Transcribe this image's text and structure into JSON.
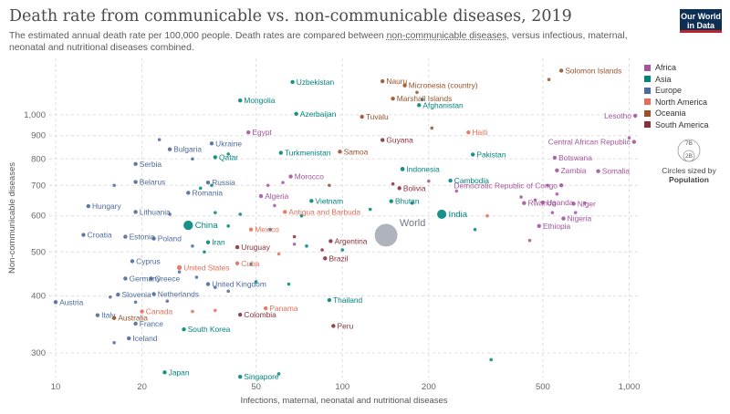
{
  "header": {
    "title": "Death rate from communicable vs. non-communicable diseases, 2019",
    "subtitle_pre": "The estimated annual death rate per 100,000 people. Death rates are compared between ",
    "subtitle_link": "non-communicable diseases",
    "subtitle_post": ", versus infectious, maternal, neonatal and nutritional diseases combined.",
    "logo_line1": "Our World",
    "logo_line2": "in Data"
  },
  "legend": {
    "items": [
      {
        "label": "Africa",
        "color": "#a2559c"
      },
      {
        "label": "Asia",
        "color": "#00847e"
      },
      {
        "label": "Europe",
        "color": "#4c6a9c"
      },
      {
        "label": "North America",
        "color": "#e56e5a"
      },
      {
        "label": "Oceania",
        "color": "#9a5129"
      },
      {
        "label": "South America",
        "color": "#883039"
      }
    ],
    "size_big": "7B",
    "size_small": "2B",
    "size_caption": "Circles sized by",
    "size_variable": "Population"
  },
  "chart_data": {
    "type": "scatter",
    "title": "Death rate from communicable vs. non-communicable diseases, 2019",
    "xlabel": "Infections, maternal, neonatal and nutritional diseases",
    "ylabel": "Non-communicable diseases",
    "x_scale": "log",
    "y_scale": "log",
    "xlim": [
      9.5,
      1080
    ],
    "ylim": [
      265,
      1330
    ],
    "x_ticks": [
      10,
      20,
      50,
      100,
      200,
      500,
      1000
    ],
    "x_tick_labels": [
      "10",
      "20",
      "50",
      "100",
      "200",
      "500",
      "1,000"
    ],
    "y_ticks": [
      300,
      400,
      500,
      600,
      700,
      800,
      900,
      1000
    ],
    "y_tick_labels": [
      "300",
      "400",
      "500",
      "600",
      "700",
      "800",
      "900",
      "1,000"
    ],
    "grid": true,
    "legend_position": "right",
    "colors": {
      "Africa": "#a2559c",
      "Asia": "#00847e",
      "Europe": "#4c6a9c",
      "North America": "#e56e5a",
      "Oceania": "#9a5129",
      "South America": "#883039",
      "World": "#6d7785"
    },
    "labeled_points": [
      {
        "name": "Solomon Islands",
        "region": "Oceania",
        "x": 580,
        "y": 1250
      },
      {
        "name": "Uzbekistan",
        "region": "Asia",
        "x": 67,
        "y": 1180
      },
      {
        "name": "Nauru",
        "region": "Oceania",
        "x": 138,
        "y": 1185
      },
      {
        "name": "Micronesia (country)",
        "region": "Oceania",
        "x": 165,
        "y": 1160
      },
      {
        "name": "Marshall Islands",
        "region": "Oceania",
        "x": 150,
        "y": 1085
      },
      {
        "name": "Mongolia",
        "region": "Asia",
        "x": 44,
        "y": 1075
      },
      {
        "name": "Afghanistan",
        "region": "Asia",
        "x": 185,
        "y": 1050
      },
      {
        "name": "Azerbaijan",
        "region": "Asia",
        "x": 69,
        "y": 1005
      },
      {
        "name": "Tuvalu",
        "region": "Oceania",
        "x": 117,
        "y": 990
      },
      {
        "name": "Lesotho",
        "region": "Africa",
        "x": 1050,
        "y": 995
      },
      {
        "name": "Egypt",
        "region": "Africa",
        "x": 47,
        "y": 915
      },
      {
        "name": "Haiti",
        "region": "North America",
        "x": 275,
        "y": 915
      },
      {
        "name": "Guyana",
        "region": "South America",
        "x": 138,
        "y": 880
      },
      {
        "name": "Central African Republic",
        "region": "Africa",
        "x": 1040,
        "y": 872
      },
      {
        "name": "Ukraine",
        "region": "Europe",
        "x": 35,
        "y": 865
      },
      {
        "name": "Bulgaria",
        "region": "Europe",
        "x": 25,
        "y": 840
      },
      {
        "name": "Samoa",
        "region": "Oceania",
        "x": 98,
        "y": 830
      },
      {
        "name": "Turkmenistan",
        "region": "Asia",
        "x": 61,
        "y": 825
      },
      {
        "name": "Pakistan",
        "region": "Asia",
        "x": 285,
        "y": 818
      },
      {
        "name": "Qatar",
        "region": "Asia",
        "x": 36,
        "y": 807
      },
      {
        "name": "Botswana",
        "region": "Africa",
        "x": 550,
        "y": 805
      },
      {
        "name": "Serbia",
        "region": "Europe",
        "x": 19,
        "y": 780
      },
      {
        "name": "Indonesia",
        "region": "Asia",
        "x": 162,
        "y": 760
      },
      {
        "name": "Zambia",
        "region": "Africa",
        "x": 560,
        "y": 755
      },
      {
        "name": "Somalia",
        "region": "Africa",
        "x": 780,
        "y": 752
      },
      {
        "name": "Morocco",
        "region": "Africa",
        "x": 66,
        "y": 732
      },
      {
        "name": "Belarus",
        "region": "Europe",
        "x": 19,
        "y": 712
      },
      {
        "name": "Russia",
        "region": "Europe",
        "x": 34,
        "y": 710
      },
      {
        "name": "Cambodia",
        "region": "Asia",
        "x": 238,
        "y": 717
      },
      {
        "name": "Democratic Republic of Congo",
        "region": "Africa",
        "x": 580,
        "y": 700
      },
      {
        "name": "Bolivia",
        "region": "South America",
        "x": 158,
        "y": 690
      },
      {
        "name": "Romania",
        "region": "Europe",
        "x": 29,
        "y": 674
      },
      {
        "name": "Algeria",
        "region": "Africa",
        "x": 52,
        "y": 663
      },
      {
        "name": "Bhutan",
        "region": "Asia",
        "x": 148,
        "y": 646
      },
      {
        "name": "Vietnam",
        "region": "Asia",
        "x": 78,
        "y": 647
      },
      {
        "name": "Rwanda",
        "region": "Africa",
        "x": 430,
        "y": 640
      },
      {
        "name": "Uganda",
        "region": "Africa",
        "x": 500,
        "y": 642
      },
      {
        "name": "Niger",
        "region": "Africa",
        "x": 640,
        "y": 638
      },
      {
        "name": "Hungary",
        "region": "Europe",
        "x": 13,
        "y": 630
      },
      {
        "name": "Lithuania",
        "region": "Europe",
        "x": 19,
        "y": 612
      },
      {
        "name": "Antigua and Barbuda",
        "region": "North America",
        "x": 63,
        "y": 612
      },
      {
        "name": "India",
        "region": "Asia",
        "x": 222,
        "y": 605
      },
      {
        "name": "Nigeria",
        "region": "Africa",
        "x": 590,
        "y": 592
      },
      {
        "name": "Ethiopia",
        "region": "Africa",
        "x": 485,
        "y": 570
      },
      {
        "name": "China",
        "region": "Asia",
        "x": 29,
        "y": 572
      },
      {
        "name": "Mexico",
        "region": "North America",
        "x": 48,
        "y": 560
      },
      {
        "name": "World",
        "region": "World",
        "x": 142,
        "y": 544
      },
      {
        "name": "Croatia",
        "region": "Europe",
        "x": 12.5,
        "y": 545
      },
      {
        "name": "Estonia",
        "region": "Europe",
        "x": 17.5,
        "y": 540
      },
      {
        "name": "Poland",
        "region": "Europe",
        "x": 22,
        "y": 535
      },
      {
        "name": "Argentina",
        "region": "South America",
        "x": 91,
        "y": 528
      },
      {
        "name": "Iran",
        "region": "Asia",
        "x": 34,
        "y": 525
      },
      {
        "name": "Uruguay",
        "region": "South America",
        "x": 43,
        "y": 512
      },
      {
        "name": "Brazil",
        "region": "South America",
        "x": 87,
        "y": 484
      },
      {
        "name": "Cyprus",
        "region": "Europe",
        "x": 18.5,
        "y": 477
      },
      {
        "name": "United States",
        "region": "North America",
        "x": 27,
        "y": 462
      },
      {
        "name": "Cuba",
        "region": "North America",
        "x": 43,
        "y": 472
      },
      {
        "name": "Germany",
        "region": "Europe",
        "x": 17.5,
        "y": 437
      },
      {
        "name": "Greece",
        "region": "Europe",
        "x": 21.5,
        "y": 437
      },
      {
        "name": "United Kingdom",
        "region": "Europe",
        "x": 34,
        "y": 425
      },
      {
        "name": "Slovenia",
        "region": "Europe",
        "x": 16.5,
        "y": 403
      },
      {
        "name": "Netherlands",
        "region": "Europe",
        "x": 22,
        "y": 404
      },
      {
        "name": "Austria",
        "region": "Europe",
        "x": 10,
        "y": 388
      },
      {
        "name": "Thailand",
        "region": "Asia",
        "x": 90,
        "y": 392
      },
      {
        "name": "Panama",
        "region": "North America",
        "x": 54,
        "y": 376
      },
      {
        "name": "Canada",
        "region": "North America",
        "x": 20,
        "y": 370
      },
      {
        "name": "Colombia",
        "region": "South America",
        "x": 44,
        "y": 364
      },
      {
        "name": "Italy",
        "region": "Europe",
        "x": 14,
        "y": 363
      },
      {
        "name": "Australia",
        "region": "Oceania",
        "x": 16,
        "y": 358
      },
      {
        "name": "France",
        "region": "Europe",
        "x": 19,
        "y": 348
      },
      {
        "name": "Peru",
        "region": "South America",
        "x": 93,
        "y": 344
      },
      {
        "name": "South Korea",
        "region": "Asia",
        "x": 28,
        "y": 338
      },
      {
        "name": "Iceland",
        "region": "Europe",
        "x": 18,
        "y": 323
      },
      {
        "name": "Japan",
        "region": "Asia",
        "x": 24,
        "y": 272
      },
      {
        "name": "Singapore",
        "region": "Asia",
        "x": 44,
        "y": 266
      }
    ],
    "unlabeled_points": [
      {
        "region": "Oceania",
        "x": 525,
        "y": 1195
      },
      {
        "region": "Oceania",
        "x": 182,
        "y": 1120
      },
      {
        "region": "Asia",
        "x": 190,
        "y": 1080
      },
      {
        "region": "Oceania",
        "x": 205,
        "y": 935
      },
      {
        "region": "Africa",
        "x": 1000,
        "y": 890
      },
      {
        "region": "Europe",
        "x": 23,
        "y": 882
      },
      {
        "region": "Asia",
        "x": 40,
        "y": 820
      },
      {
        "region": "Europe",
        "x": 30,
        "y": 800
      },
      {
        "region": "Africa",
        "x": 520,
        "y": 700
      },
      {
        "region": "Europe",
        "x": 16,
        "y": 700
      },
      {
        "region": "Asia",
        "x": 32,
        "y": 690
      },
      {
        "region": "Asia",
        "x": 35,
        "y": 700
      },
      {
        "region": "Africa",
        "x": 55,
        "y": 700
      },
      {
        "region": "Africa",
        "x": 62,
        "y": 710
      },
      {
        "region": "Oceania",
        "x": 90,
        "y": 700
      },
      {
        "region": "South America",
        "x": 150,
        "y": 705
      },
      {
        "region": "Africa",
        "x": 200,
        "y": 715
      },
      {
        "region": "Africa",
        "x": 250,
        "y": 680
      },
      {
        "region": "Africa",
        "x": 420,
        "y": 660
      },
      {
        "region": "Africa",
        "x": 470,
        "y": 650
      },
      {
        "region": "Africa",
        "x": 560,
        "y": 670
      },
      {
        "region": "Africa",
        "x": 700,
        "y": 640
      },
      {
        "region": "Africa",
        "x": 650,
        "y": 610
      },
      {
        "region": "Africa",
        "x": 540,
        "y": 610
      },
      {
        "region": "Africa",
        "x": 450,
        "y": 530
      },
      {
        "region": "Asia",
        "x": 36,
        "y": 610
      },
      {
        "region": "Asia",
        "x": 44,
        "y": 605
      },
      {
        "region": "Asia",
        "x": 72,
        "y": 600
      },
      {
        "region": "Africa",
        "x": 58,
        "y": 632
      },
      {
        "region": "Asia",
        "x": 125,
        "y": 620
      },
      {
        "region": "Asia",
        "x": 175,
        "y": 640
      },
      {
        "region": "Europe",
        "x": 25,
        "y": 605
      },
      {
        "region": "Asia",
        "x": 40,
        "y": 570
      },
      {
        "region": "Asia",
        "x": 56,
        "y": 560
      },
      {
        "region": "South America",
        "x": 68,
        "y": 540
      },
      {
        "region": "Asia",
        "x": 75,
        "y": 515
      },
      {
        "region": "Asia",
        "x": 100,
        "y": 505
      },
      {
        "region": "Europe",
        "x": 30,
        "y": 515
      },
      {
        "region": "Asia",
        "x": 33,
        "y": 500
      },
      {
        "region": "Africa",
        "x": 68,
        "y": 520
      },
      {
        "region": "North America",
        "x": 60,
        "y": 495
      },
      {
        "region": "South America",
        "x": 85,
        "y": 505
      },
      {
        "region": "Asia",
        "x": 48,
        "y": 470
      },
      {
        "region": "Europe",
        "x": 27,
        "y": 452
      },
      {
        "region": "Europe",
        "x": 31,
        "y": 440
      },
      {
        "region": "Europe",
        "x": 36,
        "y": 418
      },
      {
        "region": "Europe",
        "x": 40,
        "y": 410
      },
      {
        "region": "Asia",
        "x": 50,
        "y": 430
      },
      {
        "region": "Asia",
        "x": 65,
        "y": 425
      },
      {
        "region": "Europe",
        "x": 15.5,
        "y": 398
      },
      {
        "region": "Europe",
        "x": 19,
        "y": 388
      },
      {
        "region": "Europe",
        "x": 24.5,
        "y": 390
      },
      {
        "region": "North America",
        "x": 30,
        "y": 370
      },
      {
        "region": "North America",
        "x": 36,
        "y": 372
      },
      {
        "region": "Europe",
        "x": 16,
        "y": 316
      },
      {
        "region": "Asia",
        "x": 330,
        "y": 290
      },
      {
        "region": "Asia",
        "x": 60,
        "y": 270
      },
      {
        "region": "Asia",
        "x": 290,
        "y": 560
      },
      {
        "region": "North America",
        "x": 320,
        "y": 600
      }
    ],
    "population_sized": {
      "World": 7700,
      "China": 1430,
      "India": 1370,
      "Indonesia": 270,
      "Pakistan": 216,
      "United States": 330,
      "Brazil": 211,
      "Nigeria": 200,
      "Bangladesh": 163
    }
  }
}
